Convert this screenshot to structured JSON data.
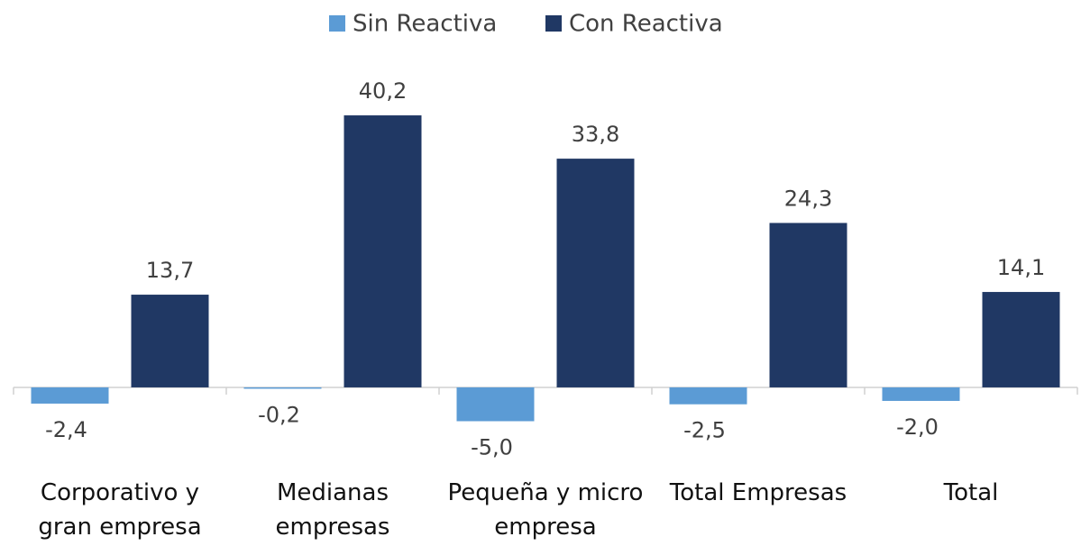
{
  "chart_data": {
    "type": "bar",
    "categories": [
      "Corporativo y gran empresa",
      "Medianas empresas",
      "Pequeña y micro empresa",
      "Total Empresas",
      "Total"
    ],
    "series": [
      {
        "name": "Sin Reactiva",
        "color": "#5b9bd5",
        "values": [
          -2.4,
          -0.2,
          -5.0,
          -2.5,
          -2.0
        ],
        "value_labels": [
          "-2,4",
          "-0,2",
          "-5,0",
          "-2,5",
          "-2,0"
        ]
      },
      {
        "name": "Con Reactiva",
        "color": "#203864",
        "values": [
          13.7,
          40.2,
          33.8,
          24.3,
          14.1
        ],
        "value_labels": [
          "13,7",
          "40,2",
          "33,8",
          "24,3",
          "14,1"
        ]
      }
    ],
    "ylim": [
      -6,
      45
    ],
    "legend": "top"
  }
}
